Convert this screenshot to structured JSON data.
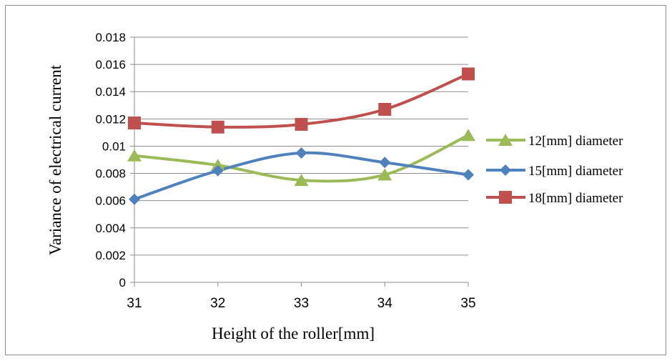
{
  "chart_data": {
    "type": "line",
    "xlabel": "Height of the roller[mm]",
    "ylabel": "Variance of electrical current",
    "x": [
      31,
      32,
      33,
      34,
      35
    ],
    "x_tick_labels": [
      "31",
      "32",
      "33",
      "34",
      "35"
    ],
    "ylim": [
      0,
      0.018
    ],
    "y_ticks": [
      0,
      0.002,
      0.004,
      0.006,
      0.008,
      0.01,
      0.012,
      0.014,
      0.016,
      0.018
    ],
    "y_tick_labels": [
      "0",
      "0.002",
      "0.004",
      "0.006",
      "0.008",
      "0.01",
      "0.012",
      "0.014",
      "0.016",
      "0.018"
    ],
    "grid": "horizontal",
    "legend_position": "right",
    "smooth_lines": true,
    "series": [
      {
        "name": "12[mm] diameter",
        "values": [
          0.0093,
          0.0086,
          0.0075,
          0.0079,
          0.0108
        ],
        "color": "#9bbb59",
        "marker": "triangle"
      },
      {
        "name": "15[mm] diameter",
        "values": [
          0.0061,
          0.0082,
          0.0095,
          0.0088,
          0.0079
        ],
        "color": "#4f81bd",
        "marker": "diamond"
      },
      {
        "name": "18[mm] diameter",
        "values": [
          0.0117,
          0.0114,
          0.0116,
          0.0127,
          0.0153
        ],
        "color": "#c0504d",
        "marker": "square"
      }
    ]
  }
}
